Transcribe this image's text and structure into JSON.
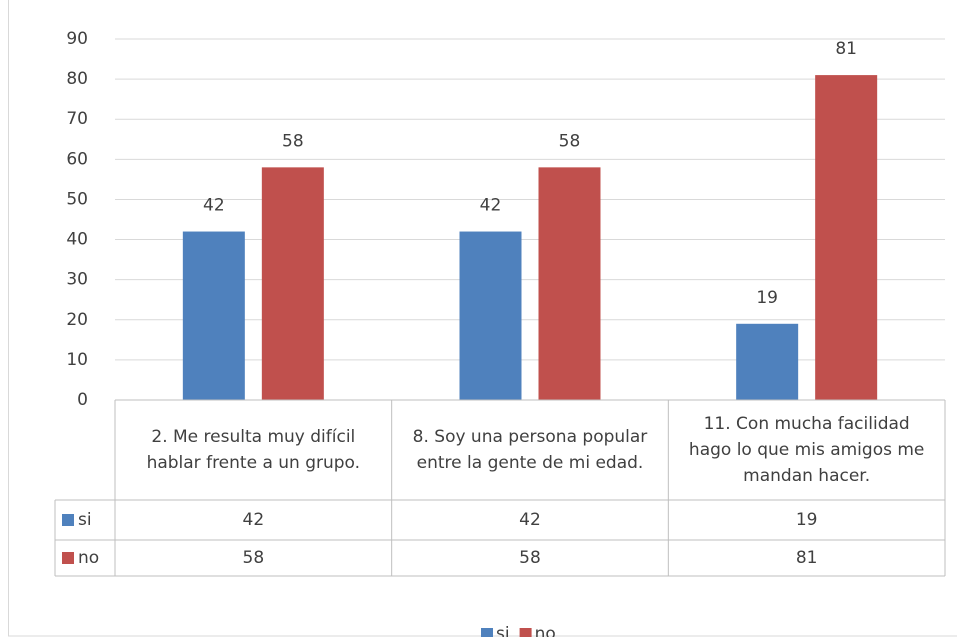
{
  "chart_data": {
    "type": "bar",
    "categories": [
      "2. Me resulta muy difícil hablar frente a un grupo.",
      "8. Soy una persona popular entre la gente de mi edad.",
      "11. Con mucha facilidad hago lo que mis amigos me mandan hacer."
    ],
    "series": [
      {
        "name": "si",
        "color": "#4f81bd",
        "values": [
          42,
          42,
          19
        ]
      },
      {
        "name": "no",
        "color": "#c0504d",
        "values": [
          58,
          58,
          81
        ]
      }
    ],
    "ylim": [
      0,
      90
    ],
    "yticks": [
      0,
      10,
      20,
      30,
      40,
      50,
      60,
      70,
      80,
      90
    ],
    "grid": true,
    "legend": "bottom",
    "data_table": true
  }
}
